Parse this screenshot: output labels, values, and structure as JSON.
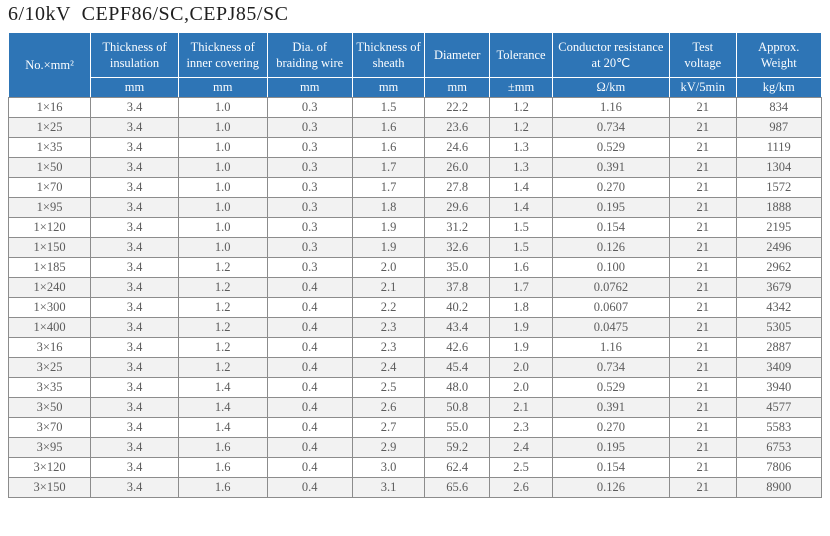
{
  "header": {
    "title": "6/10kV  CEPF86/SC,CEPJ85/SC"
  },
  "table": {
    "columns": [
      {
        "id": "size",
        "label": "No.×mm²",
        "unit": null,
        "width_pct": 10.1
      },
      {
        "id": "insulation",
        "label": "Thickness of insulation",
        "unit": "mm",
        "width_pct": 10.8
      },
      {
        "id": "inner_covering",
        "label": "Thickness of inner covering",
        "unit": "mm",
        "width_pct": 10.9
      },
      {
        "id": "braiding_wire",
        "label": "Dia. of braiding wire",
        "unit": "mm",
        "width_pct": 10.5
      },
      {
        "id": "sheath",
        "label": "Thickness of sheath",
        "unit": "mm",
        "width_pct": 8.9
      },
      {
        "id": "diameter",
        "label": "Diameter",
        "unit": "mm",
        "width_pct": 8.0
      },
      {
        "id": "tolerance",
        "label": "Tolerance",
        "unit": "±mm",
        "width_pct": 7.7
      },
      {
        "id": "resistance",
        "label": "Conductor resistance at 20℃",
        "unit": "Ω/km",
        "width_pct": 14.4
      },
      {
        "id": "test_voltage",
        "label": "Test voltage",
        "unit": "kV/5min",
        "width_pct": 8.2
      },
      {
        "id": "weight",
        "label": "Approx. Weight",
        "unit": "kg/km",
        "width_pct": 10.5
      }
    ],
    "rows": [
      [
        "1×16",
        "3.4",
        "1.0",
        "0.3",
        "1.5",
        "22.2",
        "1.2",
        "1.16",
        "21",
        "834"
      ],
      [
        "1×25",
        "3.4",
        "1.0",
        "0.3",
        "1.6",
        "23.6",
        "1.2",
        "0.734",
        "21",
        "987"
      ],
      [
        "1×35",
        "3.4",
        "1.0",
        "0.3",
        "1.6",
        "24.6",
        "1.3",
        "0.529",
        "21",
        "1119"
      ],
      [
        "1×50",
        "3.4",
        "1.0",
        "0.3",
        "1.7",
        "26.0",
        "1.3",
        "0.391",
        "21",
        "1304"
      ],
      [
        "1×70",
        "3.4",
        "1.0",
        "0.3",
        "1.7",
        "27.8",
        "1.4",
        "0.270",
        "21",
        "1572"
      ],
      [
        "1×95",
        "3.4",
        "1.0",
        "0.3",
        "1.8",
        "29.6",
        "1.4",
        "0.195",
        "21",
        "1888"
      ],
      [
        "1×120",
        "3.4",
        "1.0",
        "0.3",
        "1.9",
        "31.2",
        "1.5",
        "0.154",
        "21",
        "2195"
      ],
      [
        "1×150",
        "3.4",
        "1.0",
        "0.3",
        "1.9",
        "32.6",
        "1.5",
        "0.126",
        "21",
        "2496"
      ],
      [
        "1×185",
        "3.4",
        "1.2",
        "0.3",
        "2.0",
        "35.0",
        "1.6",
        "0.100",
        "21",
        "2962"
      ],
      [
        "1×240",
        "3.4",
        "1.2",
        "0.4",
        "2.1",
        "37.8",
        "1.7",
        "0.0762",
        "21",
        "3679"
      ],
      [
        "1×300",
        "3.4",
        "1.2",
        "0.4",
        "2.2",
        "40.2",
        "1.8",
        "0.0607",
        "21",
        "4342"
      ],
      [
        "1×400",
        "3.4",
        "1.2",
        "0.4",
        "2.3",
        "43.4",
        "1.9",
        "0.0475",
        "21",
        "5305"
      ],
      [
        "3×16",
        "3.4",
        "1.2",
        "0.4",
        "2.3",
        "42.6",
        "1.9",
        "1.16",
        "21",
        "2887"
      ],
      [
        "3×25",
        "3.4",
        "1.2",
        "0.4",
        "2.4",
        "45.4",
        "2.0",
        "0.734",
        "21",
        "3409"
      ],
      [
        "3×35",
        "3.4",
        "1.4",
        "0.4",
        "2.5",
        "48.0",
        "2.0",
        "0.529",
        "21",
        "3940"
      ],
      [
        "3×50",
        "3.4",
        "1.4",
        "0.4",
        "2.6",
        "50.8",
        "2.1",
        "0.391",
        "21",
        "4577"
      ],
      [
        "3×70",
        "3.4",
        "1.4",
        "0.4",
        "2.7",
        "55.0",
        "2.3",
        "0.270",
        "21",
        "5583"
      ],
      [
        "3×95",
        "3.4",
        "1.6",
        "0.4",
        "2.9",
        "59.2",
        "2.4",
        "0.195",
        "21",
        "6753"
      ],
      [
        "3×120",
        "3.4",
        "1.6",
        "0.4",
        "3.0",
        "62.4",
        "2.5",
        "0.154",
        "21",
        "7806"
      ],
      [
        "3×150",
        "3.4",
        "1.6",
        "0.4",
        "3.1",
        "65.6",
        "2.6",
        "0.126",
        "21",
        "8900"
      ]
    ]
  },
  "colors": {
    "header_bg": "#2e75b6",
    "header_text": "#fbfdff",
    "row_stripe": "#f2f2f2",
    "body_text": "#5c5c5c",
    "grid": "#8c8c8c",
    "title_text": "#1f1f1f"
  }
}
